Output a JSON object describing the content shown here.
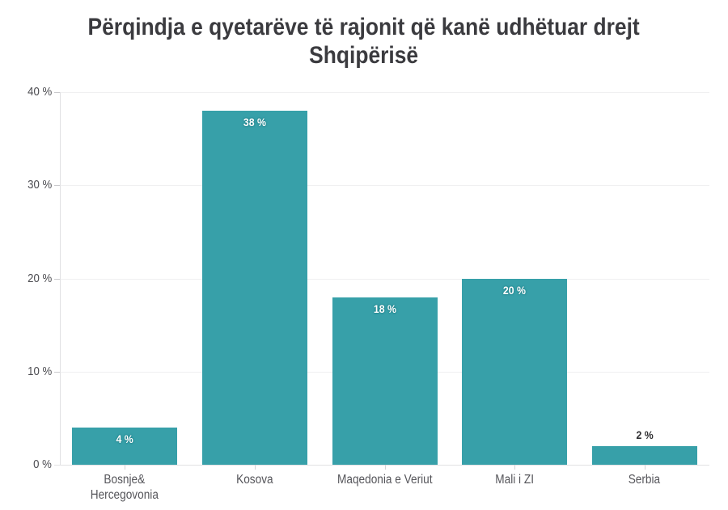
{
  "chart_data": {
    "type": "bar",
    "title": "Përqindja e qyetarëve të rajonit që kanë udhëtuar drejt\nShqipërisë",
    "categories": [
      "Bosnje&\nHercegovonia",
      "Kosova",
      "Maqedonia e Veriut",
      "Mali i ZI",
      "Serbia"
    ],
    "values": [
      4,
      38,
      18,
      20,
      2
    ],
    "value_labels": [
      "4 %",
      "38 %",
      "18 %",
      "20 %",
      "2 %"
    ],
    "value_label_placement": [
      "inside",
      "inside",
      "inside",
      "inside",
      "above"
    ],
    "xlabel": "",
    "ylabel": "",
    "ylim": [
      0,
      40
    ],
    "yticks": [
      0,
      10,
      20,
      30,
      40
    ],
    "ytick_labels": [
      "0 %",
      "10 %",
      "20 %",
      "30 %",
      "40 %"
    ],
    "grid": true,
    "legend": "none",
    "colors": {
      "bar": "#37a0a9",
      "title_text": "#3b3b3f",
      "axis_text": "#4d4d52",
      "gridline": "#f0f0f1",
      "axis_line": "#e1e1e3",
      "value_label_inside": "#ffffff",
      "value_label_above": "#2e2e31",
      "background": "#ffffff"
    }
  }
}
